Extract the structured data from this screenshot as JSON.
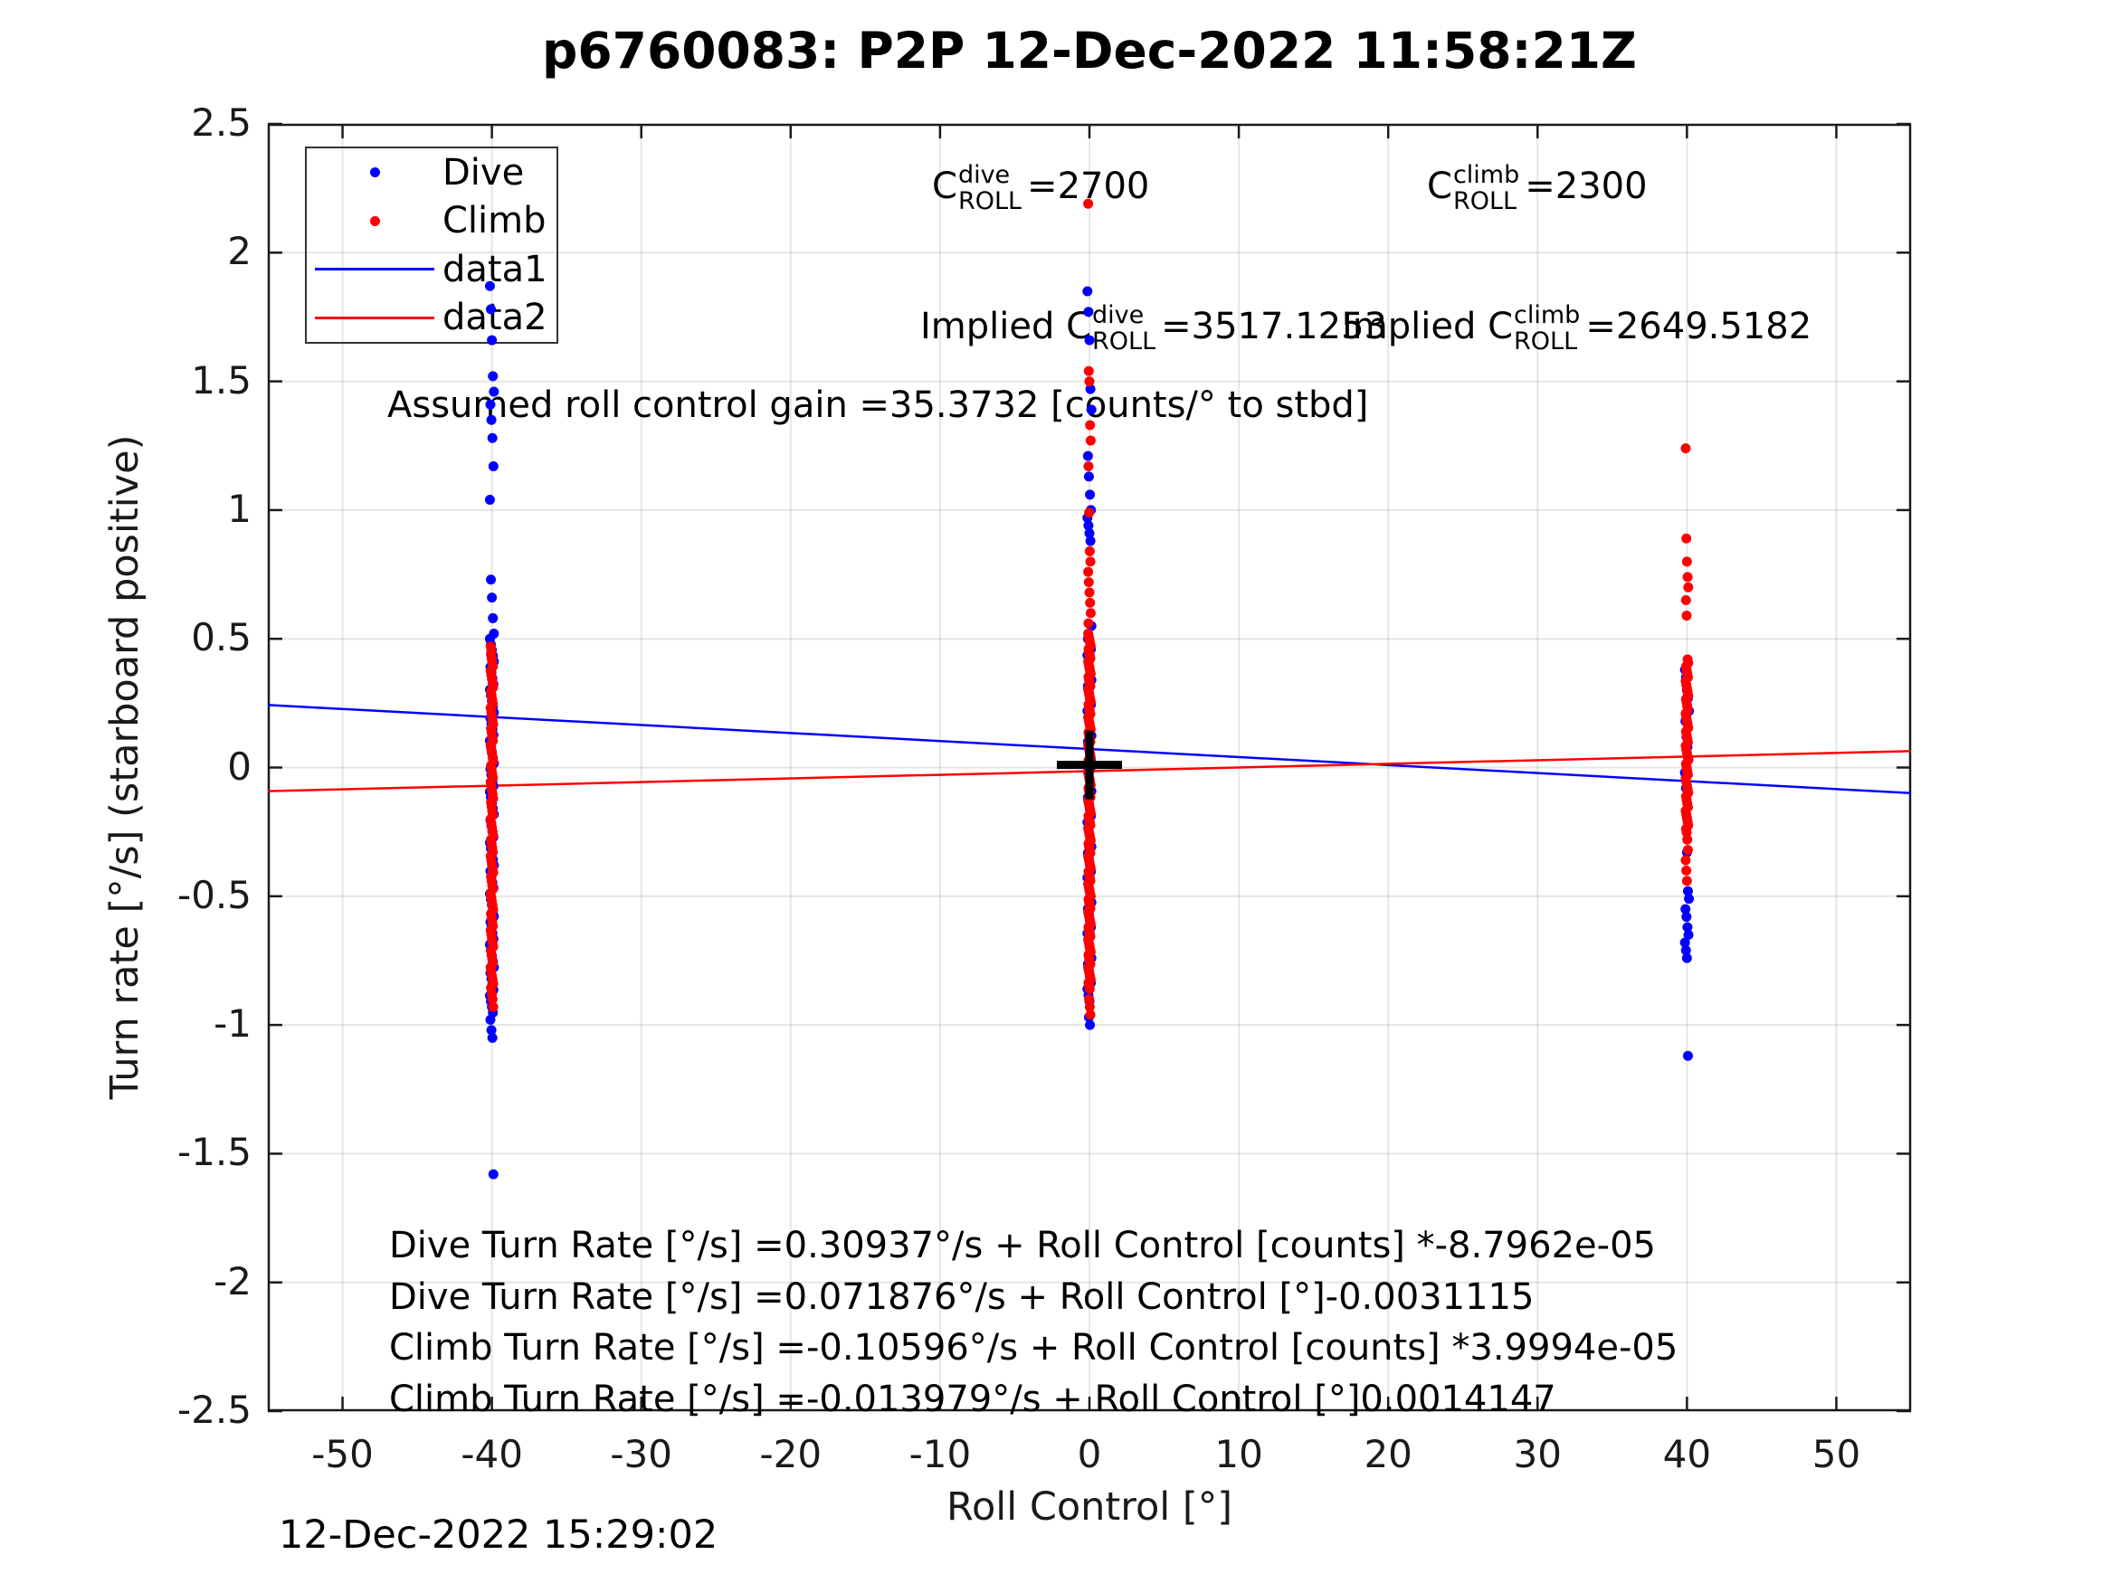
{
  "title": "p6760083: P2P 12-Dec-2022 11:58:21Z",
  "timestamp": "12-Dec-2022 15:29:02",
  "axes": {
    "xlabel": "Roll Control [°]",
    "ylabel": "Turn rate [°/s] (starboard positive)",
    "xlim": [
      -55,
      55
    ],
    "ylim": [
      -2.5,
      2.5
    ],
    "xticks": [
      -50,
      -40,
      -30,
      -20,
      -10,
      0,
      10,
      20,
      30,
      40,
      50
    ],
    "xtick_labels": [
      "-50",
      "-40",
      "-30",
      "-20",
      "-10",
      "0",
      "10",
      "20",
      "30",
      "40",
      "50"
    ],
    "yticks": [
      2.5,
      2,
      1.5,
      1,
      0.5,
      0,
      -0.5,
      -1,
      -1.5,
      -2,
      -2.5
    ],
    "ytick_labels": [
      "2.5",
      "2",
      "1.5",
      "1",
      "0.5",
      "0",
      "-0.5",
      "-1",
      "-1.5",
      "-2",
      "-2.5"
    ],
    "grid": true
  },
  "colors": {
    "dive": "#0000ff",
    "climb": "#ff0000",
    "grid": "rgba(0,0,0,0.10)",
    "axis": "#1a1a1a",
    "marker_plus": "#000000"
  },
  "legend": {
    "items": [
      {
        "label": "Dive",
        "marker": "dot",
        "color": "#0000ff"
      },
      {
        "label": "Climb",
        "marker": "dot",
        "color": "#ff0000"
      },
      {
        "label": "data1",
        "marker": "line",
        "color": "#0000ff"
      },
      {
        "label": "data2",
        "marker": "line",
        "color": "#ff0000"
      }
    ]
  },
  "annotations": {
    "c_dive": {
      "pre": "C",
      "sup": "dive",
      "sub": "ROLL",
      "val": " =2700"
    },
    "c_climb": {
      "pre": "C",
      "sup": "climb",
      "sub": "ROLL",
      "val": " =2300"
    },
    "implied_dive": {
      "pre": "Implied C",
      "sup": "dive",
      "sub": "ROLL",
      "val": " =3517.1253"
    },
    "implied_climb": {
      "pre": "Implied C",
      "sup": "climb",
      "sub": "ROLL",
      "val": " =2649.5182"
    },
    "assumed_gain": "Assumed roll control gain =35.3732 [counts/° to stbd]"
  },
  "equations": [
    "Dive Turn Rate [°/s] =0.30937°/s + Roll Control [counts] *-8.7962e-05",
    "Dive Turn Rate [°/s] =0.071876°/s + Roll Control [°]-0.0031115",
    "Climb Turn Rate [°/s] =-0.10596°/s + Roll Control [counts] *3.9994e-05",
    "Climb Turn Rate [°/s] =-0.013979°/s + Roll Control [°]0.0014147"
  ],
  "chart_data": {
    "type": "scatter",
    "title": "p6760083: P2P 12-Dec-2022 11:58:21Z",
    "xlabel": "Roll Control [°]",
    "ylabel": "Turn rate [°/s] (starboard positive)",
    "xlim": [
      -55,
      55
    ],
    "ylim": [
      -2.5,
      2.5
    ],
    "legend_position": "northwest",
    "series": [
      {
        "name": "Dive",
        "color": "#0000ff",
        "jitter": 0.55,
        "clusters": [
          {
            "x": -40,
            "points": [
              1.87,
              1.78,
              1.66,
              1.52,
              1.46,
              1.41,
              1.35,
              1.28,
              1.17,
              1.04,
              0.73,
              0.66,
              0.58,
              0.52,
              -0.98,
              -1.02,
              -1.05,
              -1.58
            ],
            "dense": [
              {
                "from": 0.5,
                "to": -0.95,
                "step": 0.022
              }
            ]
          },
          {
            "x": 0,
            "points": [
              1.85,
              1.77,
              1.66,
              1.47,
              1.39,
              1.21,
              1.13,
              1.06,
              1.0,
              0.97,
              0.94,
              0.91,
              0.88,
              0.55,
              0.5,
              -0.97,
              -1.0
            ],
            "dense": [
              {
                "from": 0.46,
                "to": -0.9,
                "step": 0.024
              }
            ]
          },
          {
            "x": 40,
            "points": [
              0.38,
              0.35,
              0.3,
              0.27,
              0.22,
              0.18,
              0.12,
              0.08,
              0.03,
              -0.02,
              -0.08,
              -0.33,
              -0.48,
              -0.51,
              -0.55,
              -0.58,
              -0.62,
              -0.65,
              -0.68,
              -0.71,
              -0.74,
              -1.12
            ],
            "dense": []
          }
        ]
      },
      {
        "name": "Climb",
        "color": "#ff0000",
        "jitter": 0.35,
        "clusters": [
          {
            "x": -40,
            "points": [
              0.47,
              0.45,
              -0.88,
              -0.9,
              -0.93
            ],
            "dense": [
              {
                "from": 0.44,
                "to": -0.85,
                "step": 0.016
              }
            ]
          },
          {
            "x": 0,
            "points": [
              2.19,
              1.54,
              1.5,
              1.33,
              1.27,
              1.17,
              0.99,
              0.84,
              0.8,
              0.76,
              0.72,
              0.68,
              0.64,
              0.6,
              0.56,
              -0.9,
              -0.93,
              -0.96
            ],
            "dense": [
              {
                "from": 0.52,
                "to": -0.86,
                "step": 0.012
              }
            ]
          },
          {
            "x": 40,
            "points": [
              1.24,
              0.89,
              0.8,
              0.74,
              0.7,
              0.65,
              0.59,
              -0.28,
              -0.32,
              -0.36,
              -0.4,
              -0.44
            ],
            "dense": [
              {
                "from": 0.42,
                "to": -0.25,
                "step": 0.014
              }
            ]
          }
        ]
      }
    ],
    "lines": [
      {
        "name": "data1",
        "color": "#0000ff",
        "intercept": 0.071876,
        "slope": -0.0031115
      },
      {
        "name": "data2",
        "color": "#ff0000",
        "intercept": -0.013979,
        "slope": 0.0014147
      }
    ],
    "marker_plus": {
      "x": 0,
      "y": 0.01
    }
  }
}
